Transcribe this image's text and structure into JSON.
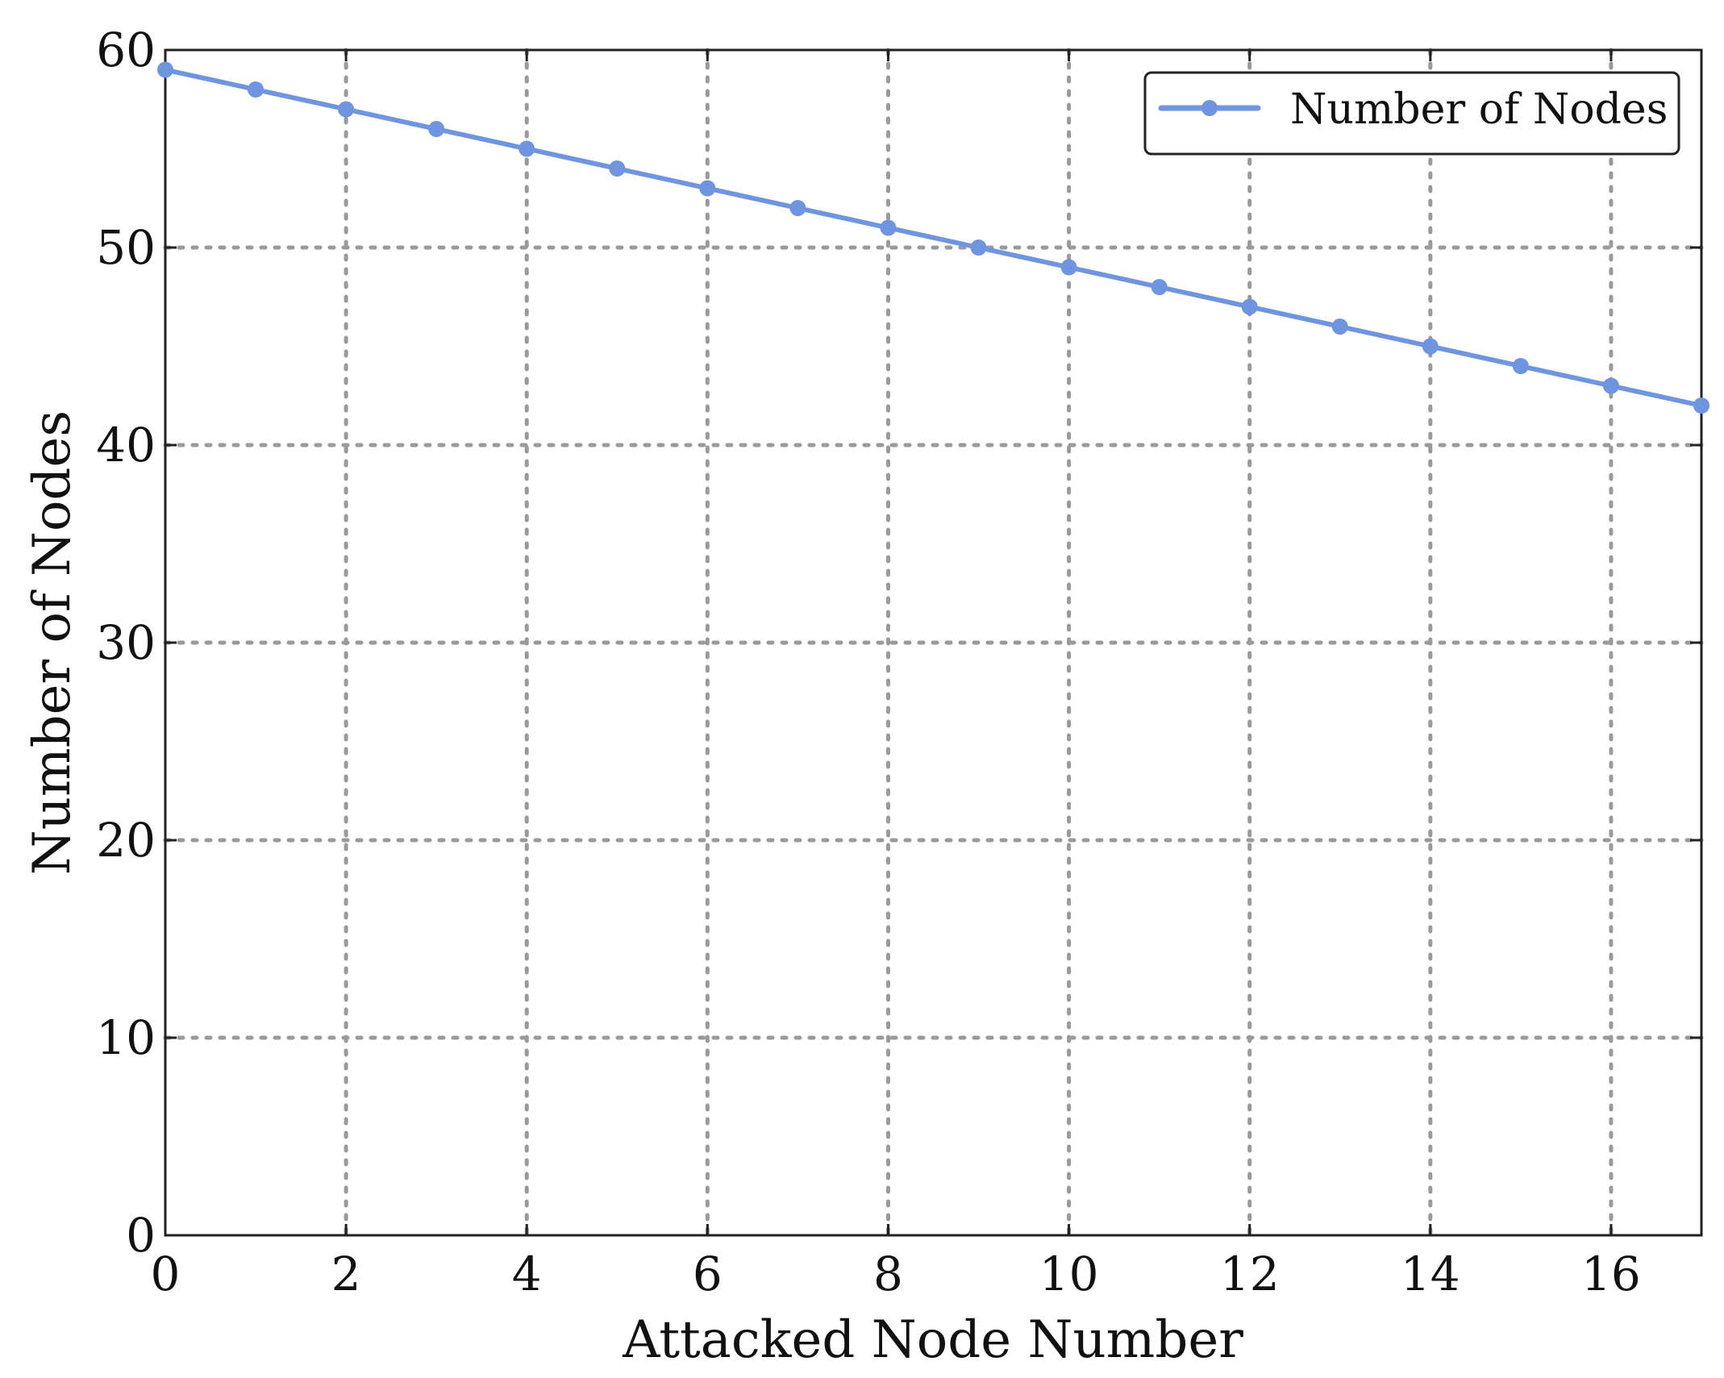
{
  "chart_data": {
    "type": "line",
    "xlabel": "Attacked Node Number",
    "ylabel": "Number of Nodes",
    "xlim": [
      0,
      17
    ],
    "ylim": [
      0,
      60
    ],
    "xticks": [
      0,
      2,
      4,
      6,
      8,
      10,
      12,
      14,
      16
    ],
    "yticks": [
      0,
      10,
      20,
      30,
      40,
      50,
      60
    ],
    "xtick_labels": [
      "0",
      "2",
      "4",
      "6",
      "8",
      "10",
      "12",
      "14",
      "16"
    ],
    "ytick_labels": [
      "0",
      "10",
      "20",
      "30",
      "40",
      "50",
      "60"
    ],
    "grid": true,
    "legend_position": "top-right",
    "series": [
      {
        "name": "Number of Nodes",
        "color": "#6f95e0",
        "x": [
          0,
          1,
          2,
          3,
          4,
          5,
          6,
          7,
          8,
          9,
          10,
          11,
          12,
          13,
          14,
          15,
          16,
          17
        ],
        "y": [
          59,
          58,
          57,
          56,
          55,
          54,
          53,
          52,
          51,
          50,
          49,
          48,
          47,
          46,
          45,
          44,
          43,
          42
        ]
      }
    ]
  }
}
